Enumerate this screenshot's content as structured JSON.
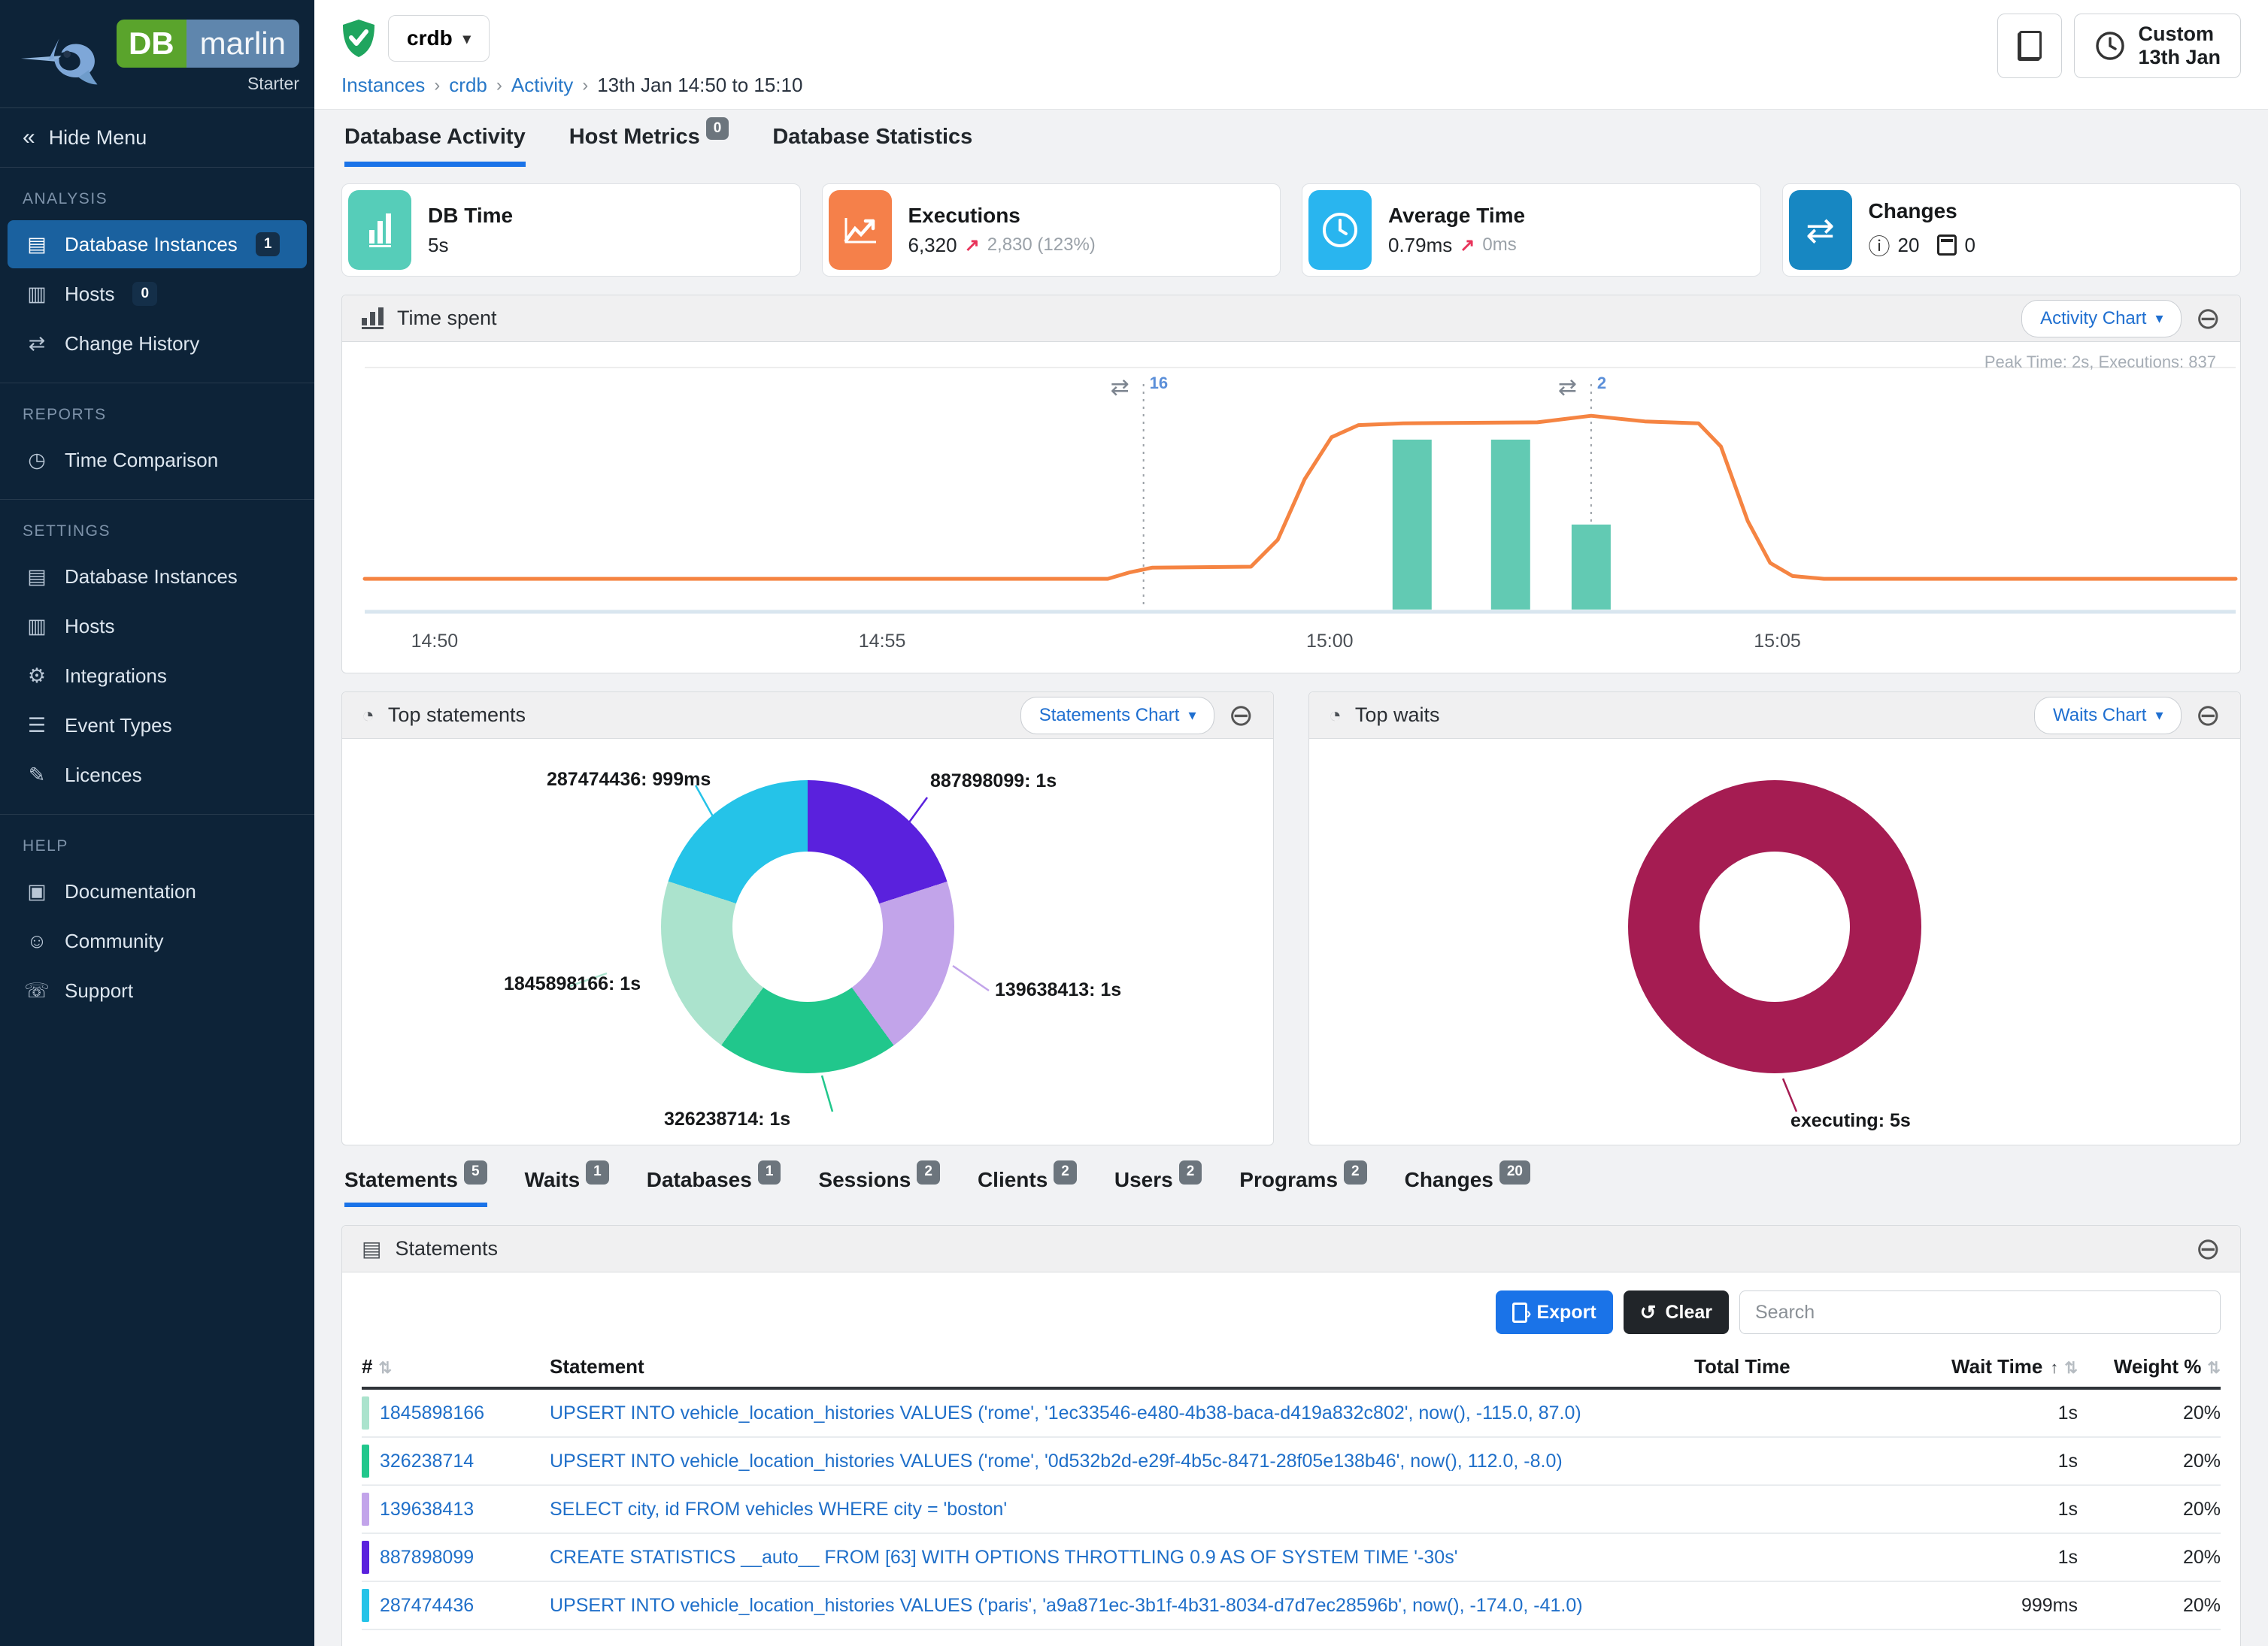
{
  "brand": {
    "db": "DB",
    "marlin": "marlin",
    "tier": "Starter"
  },
  "sidebar": {
    "hide_menu": "Hide Menu",
    "sections": [
      {
        "title": "ANALYSIS",
        "items": [
          {
            "label": "Database Instances",
            "badge": "1",
            "icon": "database-icon"
          },
          {
            "label": "Hosts",
            "badge": "0",
            "icon": "hosts-icon"
          },
          {
            "label": "Change History",
            "icon": "change-history-icon"
          }
        ]
      },
      {
        "title": "REPORTS",
        "items": [
          {
            "label": "Time Comparison",
            "icon": "time-comparison-icon"
          }
        ]
      },
      {
        "title": "SETTINGS",
        "items": [
          {
            "label": "Database Instances",
            "icon": "database-icon"
          },
          {
            "label": "Hosts",
            "icon": "hosts-icon"
          },
          {
            "label": "Integrations",
            "icon": "integrations-icon"
          },
          {
            "label": "Event Types",
            "icon": "event-types-icon"
          },
          {
            "label": "Licences",
            "icon": "licences-icon"
          }
        ]
      },
      {
        "title": "HELP",
        "items": [
          {
            "label": "Documentation",
            "icon": "documentation-icon"
          },
          {
            "label": "Community",
            "icon": "community-icon"
          },
          {
            "label": "Support",
            "icon": "support-icon"
          }
        ]
      }
    ]
  },
  "header": {
    "instance": "crdb",
    "status_icon": "shield-check-icon",
    "breadcrumb": {
      "items": [
        "Instances",
        "crdb",
        "Activity"
      ],
      "current": "13th Jan 14:50 to 15:10"
    },
    "copy_button_icon": "copy-icon",
    "time_button": {
      "line1": "Custom",
      "line2": "13th Jan",
      "icon": "clock-icon"
    }
  },
  "tabs": [
    {
      "label": "Database Activity",
      "active": true
    },
    {
      "label": "Host Metrics",
      "badge": "0"
    },
    {
      "label": "Database Statistics"
    }
  ],
  "cards": [
    {
      "title": "DB Time",
      "value": "5s",
      "icon": "bar-chart-icon",
      "color": "#56cdb9"
    },
    {
      "title": "Executions",
      "value": "6,320",
      "delta": "2,830 (123%)",
      "icon": "trend-line-icon",
      "color": "#f5804a"
    },
    {
      "title": "Average Time",
      "value": "0.79ms",
      "delta": "0ms",
      "icon": "clock-icon",
      "color": "#29b5ef"
    },
    {
      "title": "Changes",
      "info_count": "20",
      "calendar_count": "0",
      "icon": "swap-arrows-icon",
      "color": "#1787c2"
    }
  ],
  "panels": {
    "time_spent": {
      "title": "Time spent",
      "button": "Activity Chart",
      "icon": "bar-chart-icon"
    },
    "top_statements": {
      "title": "Top statements",
      "button": "Statements Chart",
      "icon": "pie-chart-icon"
    },
    "top_waits": {
      "title": "Top waits",
      "button": "Waits Chart",
      "icon": "pie-chart-icon"
    }
  },
  "chart_data": [
    {
      "id": "time_spent",
      "type": "line+bar",
      "peak_note": "Peak Time: 2s, Executions: 837",
      "x_range_minutes": [
        0,
        20.9
      ],
      "y_range_seconds": [
        0,
        2.55
      ],
      "x_ticks": [
        {
          "m": 0.78,
          "label": "14:50"
        },
        {
          "m": 5.78,
          "label": "14:55"
        },
        {
          "m": 10.78,
          "label": "15:00"
        },
        {
          "m": 15.78,
          "label": "15:05"
        }
      ],
      "line_series": {
        "name": "DB Time (s)",
        "color": "#f58442",
        "points": [
          [
            0,
            0.33
          ],
          [
            8.3,
            0.33
          ],
          [
            8.55,
            0.4
          ],
          [
            8.8,
            0.45
          ],
          [
            9.9,
            0.46
          ],
          [
            10.2,
            0.75
          ],
          [
            10.5,
            1.4
          ],
          [
            10.8,
            1.85
          ],
          [
            11.1,
            1.98
          ],
          [
            11.6,
            2.0
          ],
          [
            13.1,
            2.01
          ],
          [
            13.7,
            2.08
          ],
          [
            14.3,
            2.02
          ],
          [
            14.9,
            2.0
          ],
          [
            15.15,
            1.75
          ],
          [
            15.45,
            0.95
          ],
          [
            15.7,
            0.5
          ],
          [
            15.95,
            0.36
          ],
          [
            16.3,
            0.33
          ],
          [
            20.9,
            0.33
          ]
        ]
      },
      "bar_series": {
        "name": "Executions",
        "color": "#62cab3",
        "ymax": 1160,
        "bars": [
          {
            "m": 11.7,
            "v": 830
          },
          {
            "m": 12.8,
            "v": 830
          },
          {
            "m": 13.7,
            "v": 415
          }
        ]
      },
      "annotations": [
        {
          "m": 8.7,
          "label": "16"
        },
        {
          "m": 13.7,
          "label": "2"
        }
      ]
    },
    {
      "id": "top_statements",
      "type": "donut",
      "slices": [
        {
          "name": "887898099",
          "value": 1000,
          "value_label": "1s",
          "label": "887898099: 1s",
          "color": "#5a21dd"
        },
        {
          "name": "139638413",
          "value": 1000,
          "value_label": "1s",
          "label": "139638413: 1s",
          "color": "#c2a4ea"
        },
        {
          "name": "326238714",
          "value": 1000,
          "value_label": "1s",
          "label": "326238714: 1s",
          "color": "#21c78c"
        },
        {
          "name": "1845898166",
          "value": 1000,
          "value_label": "1s",
          "label": "1845898166: 1s",
          "color": "#abe3cd"
        },
        {
          "name": "287474436",
          "value": 999,
          "value_label": "999ms",
          "label": "287474436: 999ms",
          "color": "#25c3e8"
        }
      ]
    },
    {
      "id": "top_waits",
      "type": "donut",
      "slices": [
        {
          "name": "executing",
          "value": 5000,
          "value_label": "5s",
          "label": "executing: 5s",
          "color": "#a51c52"
        }
      ]
    }
  ],
  "bottom_tabs": [
    {
      "label": "Statements",
      "badge": "5",
      "active": true
    },
    {
      "label": "Waits",
      "badge": "1"
    },
    {
      "label": "Databases",
      "badge": "1"
    },
    {
      "label": "Sessions",
      "badge": "2"
    },
    {
      "label": "Clients",
      "badge": "2"
    },
    {
      "label": "Users",
      "badge": "2"
    },
    {
      "label": "Programs",
      "badge": "2"
    },
    {
      "label": "Changes",
      "badge": "20"
    }
  ],
  "statements": {
    "title": "Statements",
    "icon": "scroll-icon",
    "export_label": "Export",
    "clear_label": "Clear",
    "search_placeholder": "Search",
    "columns": {
      "id": "#",
      "statement": "Statement",
      "total_time": "Total Time",
      "wait_time": "Wait Time",
      "weight": "Weight %"
    },
    "rows": [
      {
        "id": "1845898166",
        "color": "#abe3cd",
        "sql": "UPSERT INTO vehicle_location_histories VALUES ('rome', '1ec33546-e480-4b38-baca-d419a832c802', now(), -115.0, 87.0)",
        "wait": "1s",
        "weight": "20%"
      },
      {
        "id": "326238714",
        "color": "#21c78c",
        "sql": "UPSERT INTO vehicle_location_histories VALUES ('rome', '0d532b2d-e29f-4b5c-8471-28f05e138b46', now(), 112.0, -8.0)",
        "wait": "1s",
        "weight": "20%"
      },
      {
        "id": "139638413",
        "color": "#c2a4ea",
        "sql": "SELECT city, id FROM vehicles WHERE city = 'boston'",
        "wait": "1s",
        "weight": "20%"
      },
      {
        "id": "887898099",
        "color": "#5a21dd",
        "sql": "CREATE STATISTICS __auto__ FROM [63] WITH OPTIONS THROTTLING 0.9 AS OF SYSTEM TIME '-30s'",
        "wait": "1s",
        "weight": "20%"
      },
      {
        "id": "287474436",
        "color": "#25c3e8",
        "sql": "UPSERT INTO vehicle_location_histories VALUES ('paris', 'a9a871ec-3b1f-4b31-8034-d7d7ec28596b', now(), -174.0, -41.0)",
        "wait": "999ms",
        "weight": "20%"
      }
    ]
  }
}
